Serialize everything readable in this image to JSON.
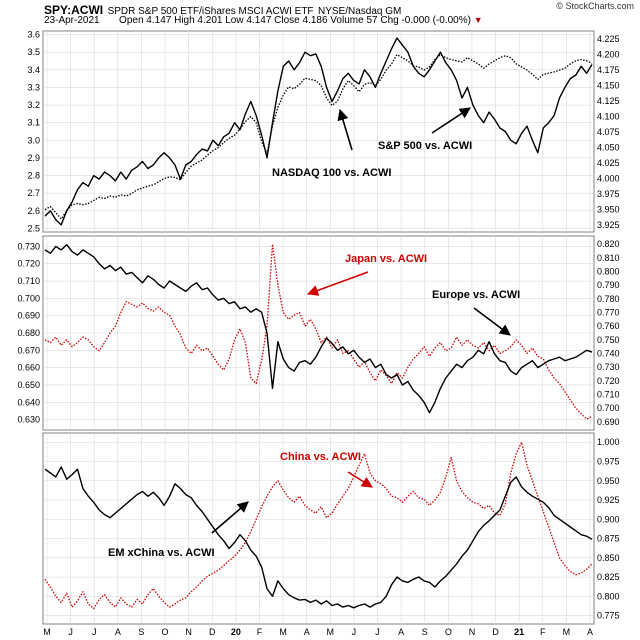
{
  "header": {
    "symbol": "SPY:ACWI",
    "name": "SPDR S&P 500 ETF/iShares MSCI ACWI ETF",
    "exchange": "NYSE/Nasdaq GM",
    "date": "23-Apr-2021",
    "ohlc": "Open 4.147  High 4.201  Low 4.147  Close 4.186  Volume 57  Chg -0.000 (-0.00%)",
    "logo": "© StockCharts.com"
  },
  "colors": {
    "black": "#000000",
    "red": "#d00000",
    "grid": "#d9d9d9",
    "frame": "#808080"
  },
  "chart_data": [
    {
      "type": "line",
      "panel": "top",
      "yaxis_left": {
        "ticks": [
          "2.5",
          "2.6",
          "2.7",
          "2.8",
          "2.9",
          "3.0",
          "3.1",
          "3.2",
          "3.3",
          "3.4",
          "3.5",
          "3.6"
        ],
        "range": [
          2.48,
          3.62
        ]
      },
      "yaxis_right": {
        "ticks": [
          "3.925",
          "3.950",
          "3.975",
          "4.000",
          "4.025",
          "4.050",
          "4.075",
          "4.100",
          "4.125",
          "4.150",
          "4.175",
          "4.200",
          "4.225"
        ],
        "range": [
          3.914,
          4.238
        ]
      },
      "annotations": [
        "NASDAQ 100 vs. ACWI",
        "S&P 500 vs. ACWI"
      ],
      "series": [
        {
          "label": "NASDAQ 100 vs. ACWI",
          "axis": "left",
          "color": "#000000",
          "style": "solid",
          "values": [
            2.57,
            2.6,
            2.55,
            2.52,
            2.6,
            2.65,
            2.72,
            2.76,
            2.74,
            2.8,
            2.78,
            2.82,
            2.8,
            2.77,
            2.82,
            2.78,
            2.83,
            2.85,
            2.88,
            2.84,
            2.86,
            2.9,
            2.93,
            2.9,
            2.86,
            2.78,
            2.86,
            2.88,
            2.92,
            2.95,
            2.94,
            3.0,
            2.97,
            3.02,
            3.04,
            3.1,
            3.06,
            3.15,
            3.22,
            3.14,
            3.03,
            2.9,
            3.1,
            3.28,
            3.42,
            3.45,
            3.4,
            3.44,
            3.5,
            3.48,
            3.49,
            3.42,
            3.3,
            3.22,
            3.28,
            3.35,
            3.38,
            3.34,
            3.32,
            3.4,
            3.36,
            3.3,
            3.38,
            3.45,
            3.52,
            3.58,
            3.54,
            3.5,
            3.42,
            3.38,
            3.36,
            3.4,
            3.45,
            3.5,
            3.44,
            3.4,
            3.34,
            3.24,
            3.3,
            3.2,
            3.14,
            3.1,
            3.16,
            3.12,
            3.07,
            3.05,
            3.0,
            2.98,
            3.04,
            3.08,
            3.0,
            2.93,
            3.07,
            3.1,
            3.14,
            3.24,
            3.3,
            3.35,
            3.37,
            3.42,
            3.38,
            3.43
          ]
        },
        {
          "label": "S&P 500 vs. ACWI",
          "axis": "right",
          "color": "#000000",
          "style": "dotted",
          "values": [
            3.95,
            3.955,
            3.945,
            3.935,
            3.948,
            3.958,
            3.96,
            3.958,
            3.96,
            3.965,
            3.97,
            3.968,
            3.972,
            3.97,
            3.974,
            3.972,
            3.976,
            3.982,
            3.985,
            3.988,
            3.99,
            3.995,
            4.0,
            4.003,
            4.002,
            3.998,
            4.01,
            4.02,
            4.025,
            4.03,
            4.038,
            4.045,
            4.05,
            4.058,
            4.065,
            4.07,
            4.08,
            4.092,
            4.1,
            4.09,
            4.06,
            4.04,
            4.085,
            4.115,
            4.135,
            4.148,
            4.145,
            4.152,
            4.162,
            4.16,
            4.158,
            4.15,
            4.13,
            4.118,
            4.125,
            4.145,
            4.158,
            4.15,
            4.14,
            4.152,
            4.155,
            4.15,
            4.16,
            4.175,
            4.185,
            4.2,
            4.195,
            4.19,
            4.182,
            4.18,
            4.175,
            4.18,
            4.192,
            4.2,
            4.195,
            4.192,
            4.19,
            4.188,
            4.195,
            4.19,
            4.185,
            4.178,
            4.185,
            4.19,
            4.195,
            4.198,
            4.195,
            4.185,
            4.18,
            4.175,
            4.168,
            4.16,
            4.168,
            4.17,
            4.172,
            4.175,
            4.178,
            4.185,
            4.19,
            4.192,
            4.19,
            4.186
          ]
        }
      ]
    },
    {
      "type": "line",
      "panel": "middle",
      "yaxis_left": {
        "ticks": [
          "0.630",
          "0.640",
          "0.650",
          "0.660",
          "0.670",
          "0.680",
          "0.690",
          "0.700",
          "0.710",
          "0.720",
          "0.730"
        ],
        "range": [
          0.624,
          0.736
        ]
      },
      "yaxis_right": {
        "ticks": [
          "0.690",
          "0.700",
          "0.710",
          "0.720",
          "0.730",
          "0.740",
          "0.750",
          "0.760",
          "0.770",
          "0.780",
          "0.790",
          "0.800",
          "0.810",
          "0.820"
        ],
        "range": [
          0.684,
          0.826
        ]
      },
      "annotations": [
        "Japan vs. ACWI",
        "Europe vs. ACWI"
      ],
      "series": [
        {
          "label": "Europe vs. ACWI",
          "axis": "left",
          "color": "#000000",
          "style": "solid",
          "values": [
            0.728,
            0.726,
            0.73,
            0.728,
            0.731,
            0.727,
            0.725,
            0.728,
            0.726,
            0.724,
            0.72,
            0.717,
            0.719,
            0.716,
            0.718,
            0.714,
            0.715,
            0.712,
            0.709,
            0.713,
            0.711,
            0.708,
            0.706,
            0.71,
            0.708,
            0.706,
            0.704,
            0.707,
            0.709,
            0.705,
            0.706,
            0.702,
            0.699,
            0.7,
            0.697,
            0.698,
            0.694,
            0.695,
            0.692,
            0.694,
            0.692,
            0.68,
            0.648,
            0.675,
            0.665,
            0.66,
            0.658,
            0.663,
            0.664,
            0.662,
            0.666,
            0.672,
            0.677,
            0.674,
            0.67,
            0.672,
            0.668,
            0.67,
            0.666,
            0.663,
            0.665,
            0.66,
            0.662,
            0.656,
            0.654,
            0.656,
            0.65,
            0.652,
            0.647,
            0.644,
            0.64,
            0.634,
            0.64,
            0.648,
            0.654,
            0.658,
            0.662,
            0.66,
            0.664,
            0.666,
            0.67,
            0.668,
            0.675,
            0.668,
            0.664,
            0.663,
            0.658,
            0.656,
            0.66,
            0.662,
            0.664,
            0.66,
            0.662,
            0.664,
            0.665,
            0.666,
            0.664,
            0.665,
            0.666,
            0.668,
            0.67,
            0.669
          ]
        },
        {
          "label": "Japan vs. ACWI",
          "axis": "right",
          "color": "#d00000",
          "style": "dotted",
          "values": [
            0.75,
            0.748,
            0.752,
            0.746,
            0.75,
            0.745,
            0.748,
            0.752,
            0.75,
            0.745,
            0.742,
            0.748,
            0.755,
            0.76,
            0.77,
            0.778,
            0.776,
            0.774,
            0.777,
            0.773,
            0.771,
            0.774,
            0.77,
            0.768,
            0.76,
            0.754,
            0.744,
            0.74,
            0.746,
            0.742,
            0.744,
            0.738,
            0.732,
            0.728,
            0.736,
            0.75,
            0.758,
            0.748,
            0.722,
            0.718,
            0.735,
            0.76,
            0.82,
            0.79,
            0.77,
            0.765,
            0.768,
            0.77,
            0.76,
            0.765,
            0.758,
            0.748,
            0.752,
            0.744,
            0.75,
            0.74,
            0.742,
            0.736,
            0.73,
            0.734,
            0.726,
            0.72,
            0.728,
            0.724,
            0.718,
            0.726,
            0.722,
            0.73,
            0.736,
            0.74,
            0.745,
            0.738,
            0.744,
            0.748,
            0.742,
            0.744,
            0.752,
            0.746,
            0.75,
            0.746,
            0.744,
            0.748,
            0.742,
            0.746,
            0.74,
            0.742,
            0.745,
            0.75,
            0.746,
            0.74,
            0.744,
            0.738,
            0.736,
            0.728,
            0.722,
            0.718,
            0.712,
            0.706,
            0.7,
            0.696,
            0.692,
            0.694
          ]
        }
      ]
    },
    {
      "type": "line",
      "panel": "bottom",
      "yaxis_right": {
        "ticks": [
          "0.775",
          "0.800",
          "0.825",
          "0.850",
          "0.875",
          "0.900",
          "0.925",
          "0.950",
          "0.975",
          "1.000"
        ],
        "range": [
          0.764,
          1.012
        ]
      },
      "annotations": [
        "China vs. ACWI",
        "EM xChina vs. ACWI"
      ],
      "series": [
        {
          "label": "EM xChina vs. ACWI",
          "axis": "right",
          "color": "#000000",
          "style": "solid",
          "values": [
            0.965,
            0.96,
            0.955,
            0.968,
            0.952,
            0.958,
            0.965,
            0.94,
            0.93,
            0.922,
            0.912,
            0.906,
            0.902,
            0.908,
            0.914,
            0.92,
            0.926,
            0.932,
            0.936,
            0.93,
            0.935,
            0.928,
            0.918,
            0.93,
            0.946,
            0.94,
            0.932,
            0.928,
            0.918,
            0.91,
            0.9,
            0.89,
            0.88,
            0.872,
            0.862,
            0.87,
            0.88,
            0.872,
            0.86,
            0.852,
            0.838,
            0.81,
            0.8,
            0.82,
            0.81,
            0.802,
            0.798,
            0.795,
            0.796,
            0.792,
            0.795,
            0.79,
            0.794,
            0.788,
            0.79,
            0.786,
            0.788,
            0.785,
            0.788,
            0.79,
            0.786,
            0.79,
            0.792,
            0.8,
            0.815,
            0.825,
            0.82,
            0.818,
            0.822,
            0.825,
            0.82,
            0.818,
            0.812,
            0.82,
            0.826,
            0.834,
            0.842,
            0.852,
            0.86,
            0.872,
            0.884,
            0.892,
            0.898,
            0.905,
            0.912,
            0.93,
            0.948,
            0.955,
            0.942,
            0.935,
            0.93,
            0.926,
            0.922,
            0.915,
            0.905,
            0.9,
            0.895,
            0.89,
            0.885,
            0.88,
            0.878,
            0.874
          ]
        },
        {
          "label": "China vs. ACWI",
          "axis": "right",
          "color": "#d00000",
          "style": "dotted",
          "values": [
            0.822,
            0.812,
            0.8,
            0.792,
            0.804,
            0.786,
            0.794,
            0.806,
            0.79,
            0.784,
            0.796,
            0.802,
            0.792,
            0.786,
            0.798,
            0.79,
            0.786,
            0.796,
            0.79,
            0.802,
            0.81,
            0.8,
            0.792,
            0.786,
            0.79,
            0.795,
            0.798,
            0.806,
            0.812,
            0.82,
            0.826,
            0.83,
            0.834,
            0.84,
            0.846,
            0.852,
            0.86,
            0.87,
            0.884,
            0.9,
            0.916,
            0.93,
            0.942,
            0.95,
            0.938,
            0.928,
            0.922,
            0.93,
            0.918,
            0.912,
            0.908,
            0.916,
            0.902,
            0.908,
            0.92,
            0.93,
            0.94,
            0.955,
            0.97,
            0.985,
            0.96,
            0.95,
            0.946,
            0.94,
            0.93,
            0.928,
            0.922,
            0.93,
            0.936,
            0.928,
            0.926,
            0.918,
            0.925,
            0.935,
            0.955,
            0.98,
            0.95,
            0.936,
            0.928,
            0.922,
            0.92,
            0.914,
            0.918,
            0.908,
            0.905,
            0.92,
            0.96,
            0.985,
            1.0,
            0.97,
            0.95,
            0.93,
            0.91,
            0.89,
            0.87,
            0.85,
            0.84,
            0.832,
            0.828,
            0.83,
            0.835,
            0.842
          ]
        }
      ]
    }
  ],
  "xaxis": {
    "labels": [
      "M",
      "J",
      "J",
      "A",
      "S",
      "O",
      "N",
      "D",
      "20",
      "F",
      "M",
      "A",
      "M",
      "J",
      "J",
      "A",
      "S",
      "O",
      "N",
      "D",
      "21",
      "F",
      "M",
      "A"
    ]
  }
}
